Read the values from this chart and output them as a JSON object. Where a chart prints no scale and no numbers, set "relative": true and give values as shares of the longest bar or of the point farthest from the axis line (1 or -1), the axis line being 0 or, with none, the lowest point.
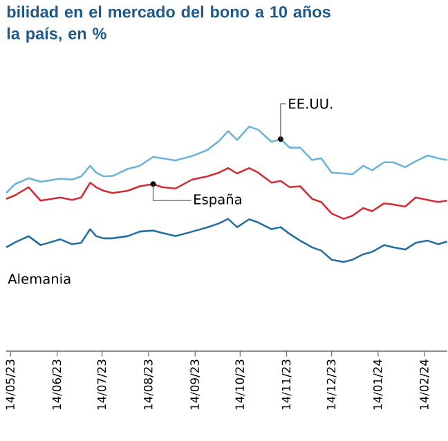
{
  "chart_data": {
    "type": "line",
    "title": "bilidad en el mercado del bono a 10 años\nla país, en %",
    "relative": true,
    "x": [
      "2023-05-11",
      "2023-05-17",
      "2023-05-26",
      "2023-06-03",
      "2023-06-16",
      "2023-06-24",
      "2023-06-30",
      "2023-07-06",
      "2023-07-10",
      "2023-07-15",
      "2023-07-21",
      "2023-07-31",
      "2023-08-08",
      "2023-08-17",
      "2023-08-23",
      "2023-09-01",
      "2023-09-12",
      "2023-09-22",
      "2023-09-30",
      "2023-10-06",
      "2023-10-12",
      "2023-10-20",
      "2023-10-26",
      "2023-11-04",
      "2023-11-10",
      "2023-11-16",
      "2023-11-23",
      "2023-12-01",
      "2023-12-07",
      "2023-12-14",
      "2023-12-22",
      "2023-12-28",
      "2024-01-04",
      "2024-01-10",
      "2024-01-18",
      "2024-01-24",
      "2024-02-01",
      "2024-02-08",
      "2024-02-16",
      "2024-02-23",
      "2024-02-29"
    ],
    "xlim": [
      "2023-05-11",
      "2024-02-29"
    ],
    "xticks": [
      {
        "value": "2023-05-14",
        "label": "14/05/23"
      },
      {
        "value": "2023-06-14",
        "label": "14/06/23"
      },
      {
        "value": "2023-07-14",
        "label": "14/07/23"
      },
      {
        "value": "2023-08-14",
        "label": "14/08/23"
      },
      {
        "value": "2023-09-14",
        "label": "14/09/23"
      },
      {
        "value": "2023-10-14",
        "label": "14/10/23"
      },
      {
        "value": "2023-11-14",
        "label": "14/11/23"
      },
      {
        "value": "2023-12-14",
        "label": "14/12/23"
      },
      {
        "value": "2024-01-14",
        "label": "14/01/24"
      },
      {
        "value": "2024-02-14",
        "label": "14/02/24"
      }
    ],
    "series": [
      {
        "name": "EE.UU.",
        "color": "#6bb3d9",
        "values": [
          0.704,
          0.744,
          0.77,
          0.754,
          0.768,
          0.764,
          0.778,
          0.825,
          0.795,
          0.778,
          0.78,
          0.811,
          0.825,
          0.865,
          0.859,
          0.849,
          0.869,
          0.895,
          0.936,
          0.98,
          0.94,
          1.0,
          0.986,
          0.932,
          0.944,
          0.906,
          0.906,
          0.851,
          0.859,
          0.795,
          0.791,
          0.788,
          0.825,
          0.805,
          0.841,
          0.841,
          0.819,
          0.845,
          0.871,
          0.859,
          0.851
        ]
      },
      {
        "name": "España",
        "color": "#d62b35",
        "values": [
          0.678,
          0.694,
          0.73,
          0.67,
          0.684,
          0.673,
          0.684,
          0.75,
          0.73,
          0.714,
          0.704,
          0.714,
          0.734,
          0.744,
          0.73,
          0.724,
          0.764,
          0.778,
          0.795,
          0.815,
          0.791,
          0.815,
          0.795,
          0.75,
          0.758,
          0.73,
          0.734,
          0.678,
          0.664,
          0.613,
          0.589,
          0.603,
          0.637,
          0.623,
          0.658,
          0.653,
          0.643,
          0.684,
          0.673,
          0.664,
          0.67
        ]
      },
      {
        "name": "Alemania",
        "color": "#1f6fa0",
        "values": [
          0.462,
          0.484,
          0.512,
          0.472,
          0.498,
          0.476,
          0.482,
          0.543,
          0.512,
          0.502,
          0.502,
          0.512,
          0.532,
          0.537,
          0.526,
          0.512,
          0.532,
          0.551,
          0.569,
          0.589,
          0.552,
          0.587,
          0.573,
          0.543,
          0.552,
          0.522,
          0.492,
          0.462,
          0.448,
          0.407,
          0.397,
          0.407,
          0.431,
          0.442,
          0.472,
          0.462,
          0.452,
          0.482,
          0.492,
          0.476,
          0.488
        ]
      }
    ]
  }
}
